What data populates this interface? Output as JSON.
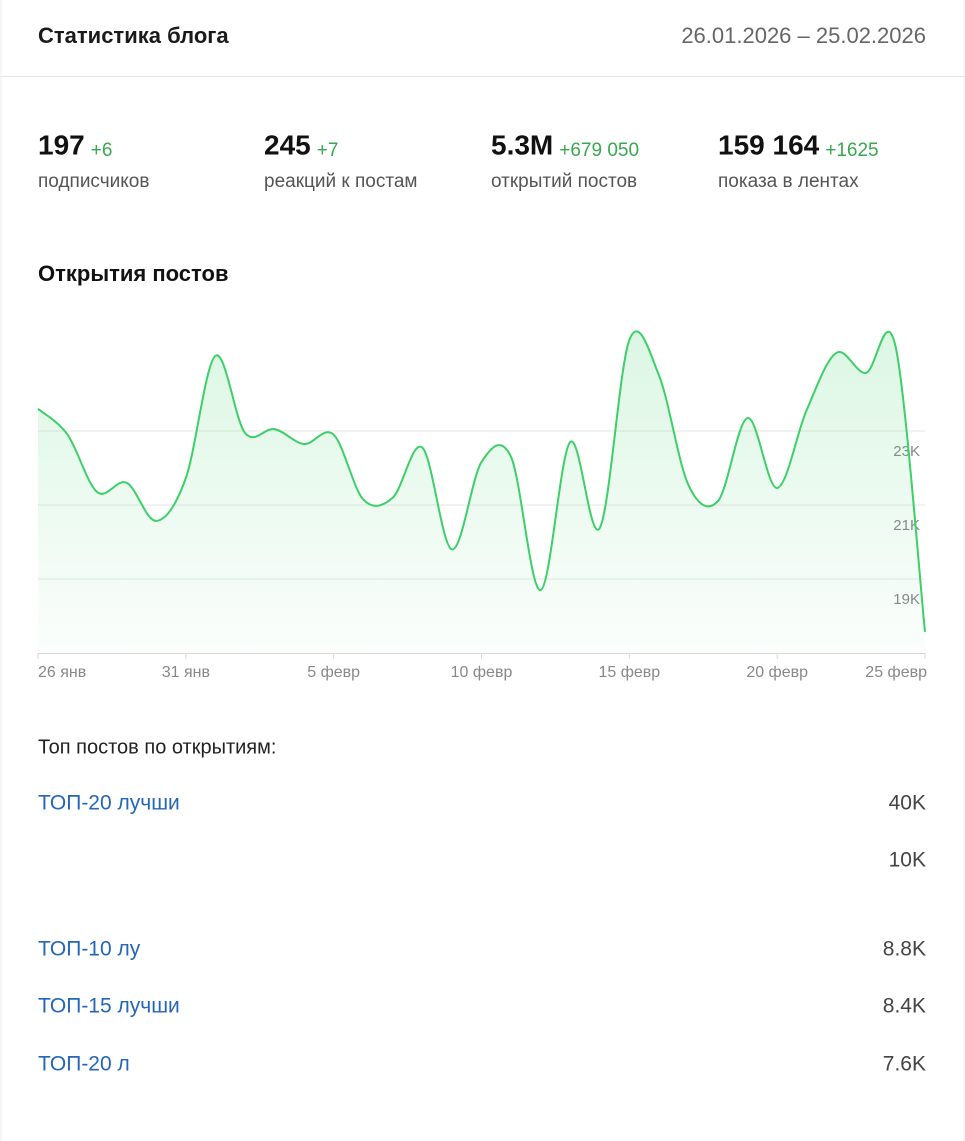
{
  "header": {
    "title": "Статистика блога",
    "date_range": "26.01.2026 – 25.02.2026"
  },
  "stats": [
    {
      "value": "197",
      "delta": "+6",
      "label": "подписчиков"
    },
    {
      "value": "245",
      "delta": "+7",
      "label": "реакций к постам"
    },
    {
      "value": "5.3M",
      "delta": "+679 050",
      "label": "открытий постов"
    },
    {
      "value": "159 164",
      "delta": "+1625",
      "label": "показа в лентах"
    }
  ],
  "chart_data": {
    "type": "area",
    "title": "Открытия постов",
    "color": "#3dcf68",
    "categories": [
      "26 янв",
      null,
      null,
      null,
      null,
      "31 янв",
      null,
      null,
      null,
      null,
      "5 февр",
      null,
      null,
      null,
      null,
      "10 февр",
      null,
      null,
      null,
      null,
      "15 февр",
      null,
      null,
      null,
      null,
      "20 февр",
      null,
      null,
      null,
      null,
      "25 февр"
    ],
    "values": [
      23600,
      22900,
      21350,
      21600,
      20570,
      21730,
      25030,
      22950,
      23050,
      22650,
      22900,
      21150,
      21200,
      22550,
      19800,
      22160,
      22300,
      18700,
      22700,
      20380,
      25460,
      24510,
      21540,
      21110,
      23350,
      21460,
      23570,
      25110,
      24570,
      25300,
      17570
    ],
    "ylim": [
      17000,
      26000
    ],
    "yticks": [
      {
        "value": 19000,
        "label": "19K"
      },
      {
        "value": 21000,
        "label": "21K"
      },
      {
        "value": 23000,
        "label": "23K"
      }
    ],
    "grid": true
  },
  "top_posts": {
    "title": "Топ постов по открытиям:",
    "rows": [
      {
        "title": "ТОП-20 лучши",
        "value": "40K"
      },
      {
        "value": "10K"
      },
      {
        "title": "ТОП-10 лу",
        "value": "8.8K"
      },
      {
        "title": "ТОП-15 лучши",
        "value": "8.4K"
      },
      {
        "title": "ТОП-20 л",
        "value": "7.6K"
      }
    ]
  }
}
